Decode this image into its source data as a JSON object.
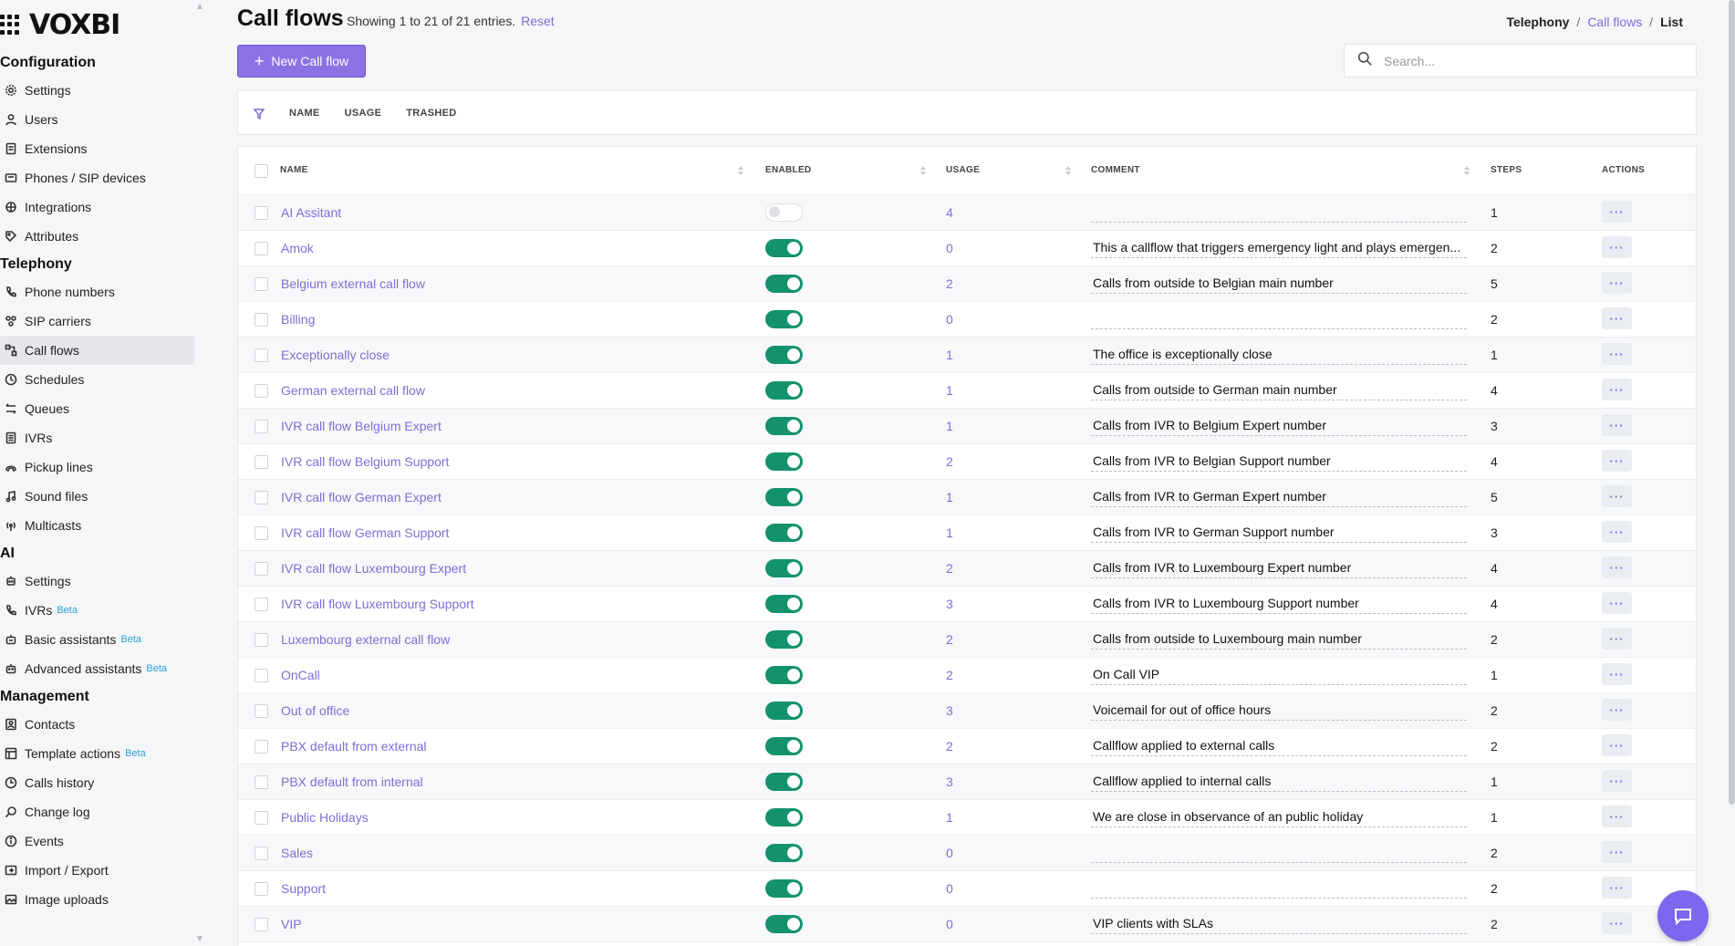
{
  "app": {
    "logo": "VOXBI"
  },
  "sidebar": {
    "sections": [
      {
        "title": "Configuration",
        "items": [
          {
            "label": "Settings",
            "icon": "gear-icon"
          },
          {
            "label": "Users",
            "icon": "user-icon"
          },
          {
            "label": "Extensions",
            "icon": "extension-icon"
          },
          {
            "label": "Phones / SIP devices",
            "icon": "phone-device-icon"
          },
          {
            "label": "Integrations",
            "icon": "integration-icon"
          },
          {
            "label": "Attributes",
            "icon": "tag-icon"
          }
        ]
      },
      {
        "title": "Telephony",
        "items": [
          {
            "label": "Phone numbers",
            "icon": "phone-icon"
          },
          {
            "label": "SIP carriers",
            "icon": "carrier-icon"
          },
          {
            "label": "Call flows",
            "icon": "callflow-icon",
            "active": true
          },
          {
            "label": "Schedules",
            "icon": "clock-icon"
          },
          {
            "label": "Queues",
            "icon": "queue-icon"
          },
          {
            "label": "IVRs",
            "icon": "keypad-icon"
          },
          {
            "label": "Pickup lines",
            "icon": "pickup-icon"
          },
          {
            "label": "Sound files",
            "icon": "music-icon"
          },
          {
            "label": "Multicasts",
            "icon": "broadcast-icon"
          }
        ]
      },
      {
        "title": "AI",
        "items": [
          {
            "label": "Settings",
            "icon": "ai-settings-icon"
          },
          {
            "label": "IVRs",
            "icon": "ai-ivr-icon",
            "badge": "Beta"
          },
          {
            "label": "Basic assistants",
            "icon": "robot-icon",
            "badge": "Beta"
          },
          {
            "label": "Advanced assistants",
            "icon": "robot-advanced-icon",
            "badge": "Beta"
          }
        ]
      },
      {
        "title": "Management",
        "items": [
          {
            "label": "Contacts",
            "icon": "contacts-icon"
          },
          {
            "label": "Template actions",
            "icon": "template-icon",
            "badge": "Beta"
          },
          {
            "label": "Calls history",
            "icon": "history-icon"
          },
          {
            "label": "Change log",
            "icon": "search-log-icon"
          },
          {
            "label": "Events",
            "icon": "info-icon"
          },
          {
            "label": "Import / Export",
            "icon": "import-export-icon"
          },
          {
            "label": "Image uploads",
            "icon": "image-icon"
          }
        ]
      }
    ]
  },
  "header": {
    "title": "Call flows",
    "entries_info": "Showing 1 to 21 of 21 entries.",
    "reset_label": "Reset",
    "breadcrumb": {
      "root": "Telephony",
      "link": "Call flows",
      "current": "List",
      "separator": "/"
    },
    "new_button_label": "New Call flow",
    "search_placeholder": "Search..."
  },
  "filter_bar": {
    "tabs": [
      "NAME",
      "USAGE",
      "TRASHED"
    ]
  },
  "table": {
    "columns": {
      "name": "NAME",
      "enabled": "ENABLED",
      "usage": "USAGE",
      "comment": "COMMENT",
      "steps": "STEPS",
      "actions": "ACTIONS"
    },
    "actions_label": "···",
    "rows": [
      {
        "name": "AI Assitant",
        "enabled": false,
        "usage": "4",
        "comment": "",
        "steps": "1"
      },
      {
        "name": "Amok",
        "enabled": true,
        "usage": "0",
        "comment": "This a callflow that triggers emergency light and plays emergen...",
        "steps": "2"
      },
      {
        "name": "Belgium external call flow",
        "enabled": true,
        "usage": "2",
        "comment": "Calls from outside to Belgian main number",
        "steps": "5"
      },
      {
        "name": "Billing",
        "enabled": true,
        "usage": "0",
        "comment": "",
        "steps": "2"
      },
      {
        "name": "Exceptionally close",
        "enabled": true,
        "usage": "1",
        "comment": "The office is exceptionally close",
        "steps": "1"
      },
      {
        "name": "German external call flow",
        "enabled": true,
        "usage": "1",
        "comment": "Calls from outside to German main number",
        "steps": "4"
      },
      {
        "name": "IVR call flow Belgium Expert",
        "enabled": true,
        "usage": "1",
        "comment": "Calls from IVR to Belgium Expert number",
        "steps": "3"
      },
      {
        "name": "IVR call flow Belgium Support",
        "enabled": true,
        "usage": "2",
        "comment": "Calls from IVR to Belgian Support number",
        "steps": "4"
      },
      {
        "name": "IVR call flow German Expert",
        "enabled": true,
        "usage": "1",
        "comment": "Calls from IVR to German Expert number",
        "steps": "5"
      },
      {
        "name": "IVR call flow German Support",
        "enabled": true,
        "usage": "1",
        "comment": "Calls from IVR to German Support number",
        "steps": "3"
      },
      {
        "name": "IVR call flow Luxembourg Expert",
        "enabled": true,
        "usage": "2",
        "comment": "Calls from IVR to Luxembourg Expert number",
        "steps": "4"
      },
      {
        "name": "IVR call flow Luxembourg Support",
        "enabled": true,
        "usage": "3",
        "comment": "Calls from IVR to Luxembourg Support number",
        "steps": "4"
      },
      {
        "name": "Luxembourg external call flow",
        "enabled": true,
        "usage": "2",
        "comment": "Calls from outside to Luxembourg main number",
        "steps": "2"
      },
      {
        "name": "OnCall",
        "enabled": true,
        "usage": "2",
        "comment": "On Call VIP",
        "steps": "1"
      },
      {
        "name": "Out of office",
        "enabled": true,
        "usage": "3",
        "comment": "Voicemail for out of office hours",
        "steps": "2"
      },
      {
        "name": "PBX default from external",
        "enabled": true,
        "usage": "2",
        "comment": "Callflow applied to external calls",
        "steps": "2"
      },
      {
        "name": "PBX default from internal",
        "enabled": true,
        "usage": "3",
        "comment": "Callflow applied to internal calls",
        "steps": "1"
      },
      {
        "name": "Public Holidays",
        "enabled": true,
        "usage": "1",
        "comment": "We are close in observance of an public holiday",
        "steps": "1"
      },
      {
        "name": "Sales",
        "enabled": true,
        "usage": "0",
        "comment": "",
        "steps": "2"
      },
      {
        "name": "Support",
        "enabled": true,
        "usage": "0",
        "comment": "",
        "steps": "2"
      },
      {
        "name": "VIP",
        "enabled": true,
        "usage": "0",
        "comment": "VIP clients with SLAs",
        "steps": "2"
      }
    ]
  },
  "colors": {
    "accent": "#7b6fd6",
    "primary_button": "#8b71e3",
    "toggle_on": "#13926c",
    "chat": "#7b68ee",
    "beta": "#2a9fd6"
  }
}
